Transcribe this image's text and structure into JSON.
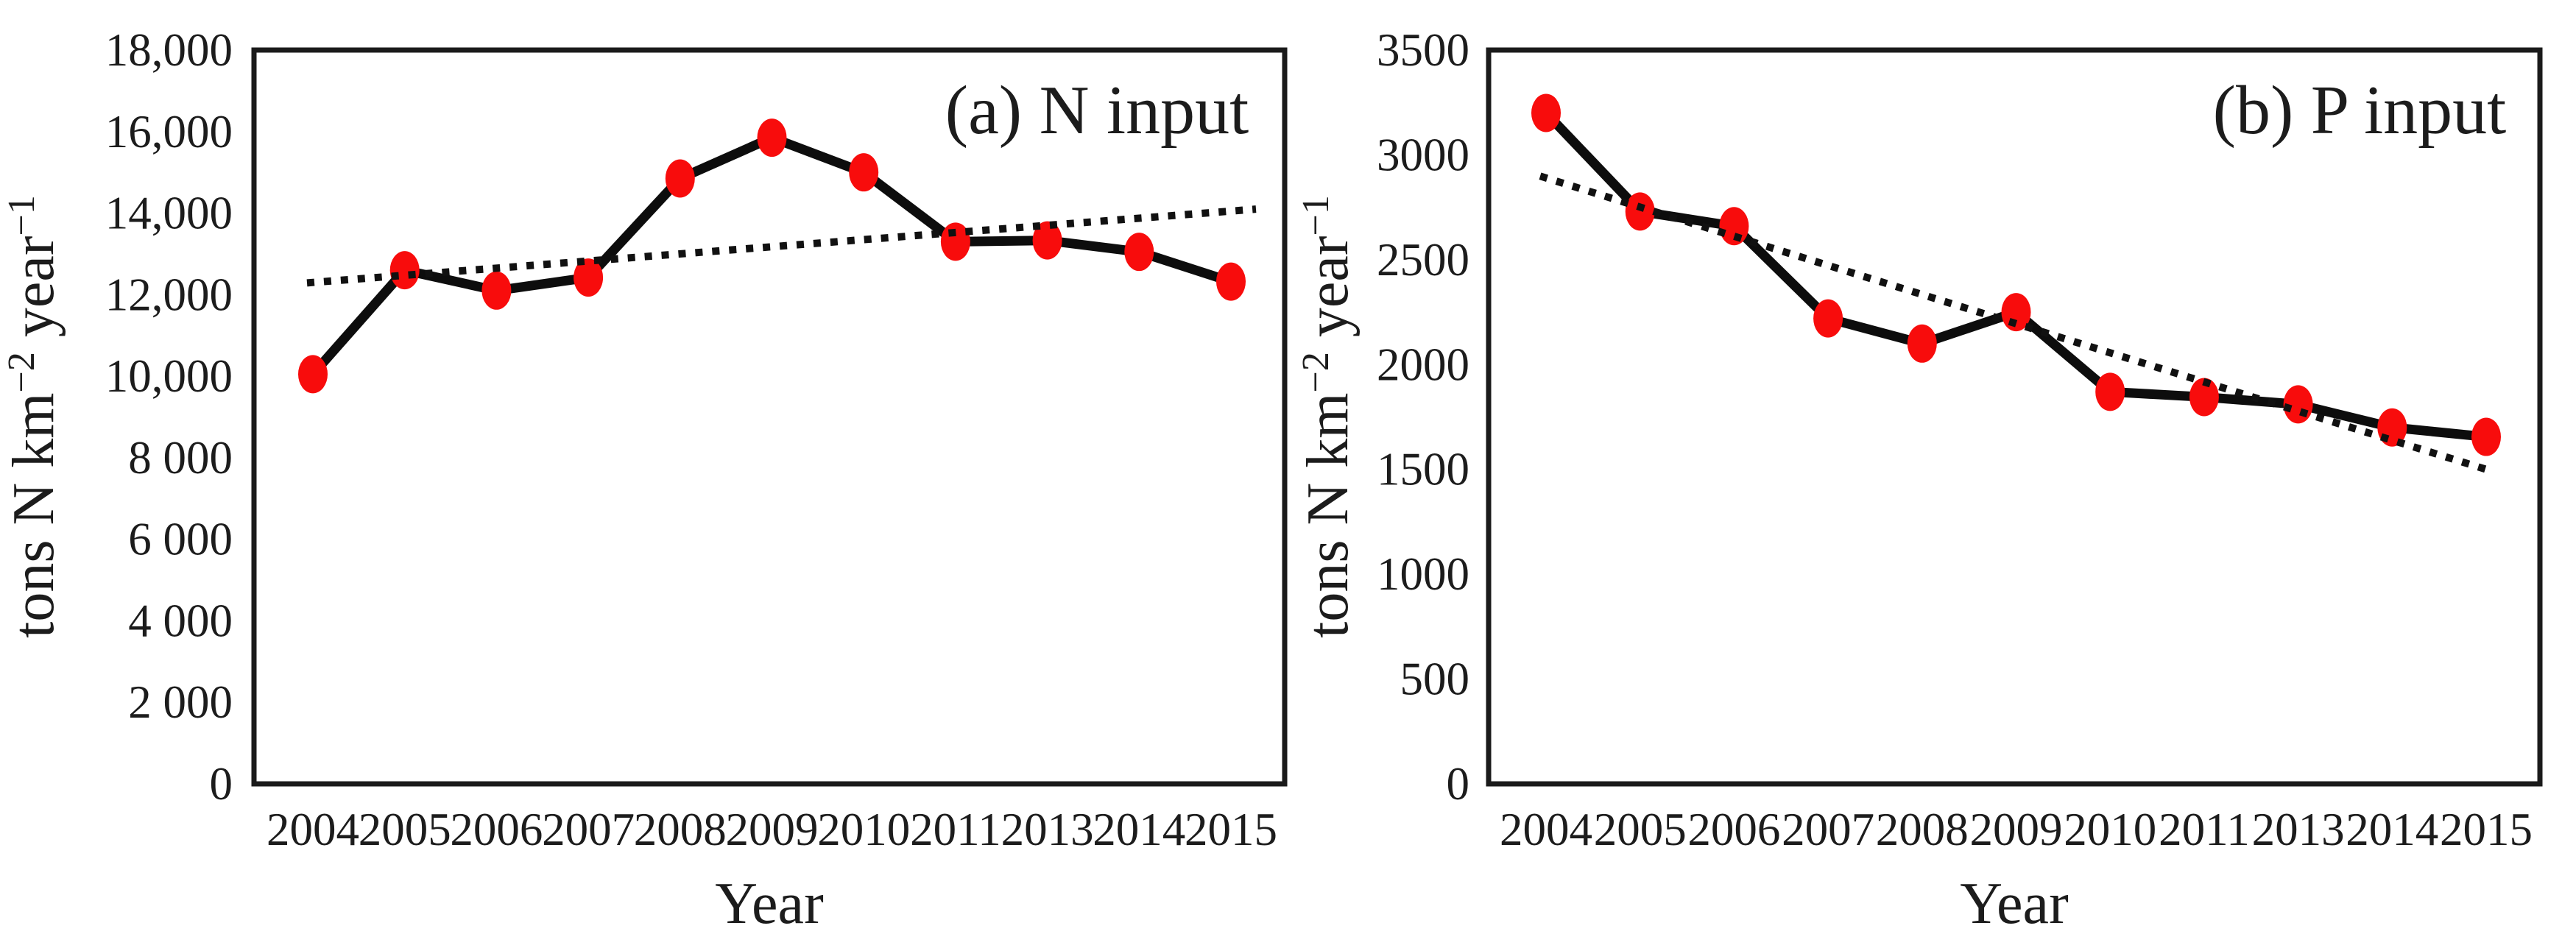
{
  "figure": {
    "background": "#ffffff",
    "text_color": "#1c1c1c",
    "series_line_color": "#0d0d0d",
    "marker_color": "#f80c0c",
    "trendline_color": "#111111"
  },
  "chart_data": [
    {
      "type": "line",
      "title": "(a) N input",
      "xlabel": "Year",
      "ylabel_parts": {
        "pre": "tons N km",
        "sup1": "−2",
        "mid": " year",
        "sup2": "−1"
      },
      "categories": [
        "2004",
        "2005",
        "2006",
        "2007",
        "2008",
        "2009",
        "2010",
        "2011",
        "2013",
        "2014",
        "2015"
      ],
      "series": [
        {
          "name": "N input",
          "values": [
            10050,
            12600,
            12100,
            12420,
            14850,
            15850,
            15000,
            13300,
            13330,
            13050,
            12320
          ]
        }
      ],
      "trendline": {
        "style": "dotted",
        "start_value": 12300,
        "end_value": 14050
      },
      "ylim": [
        0,
        18000
      ],
      "yticks": [
        {
          "value": 0,
          "label": "0"
        },
        {
          "value": 2000,
          "label": "2 000"
        },
        {
          "value": 4000,
          "label": "4 000"
        },
        {
          "value": 6000,
          "label": "6 000"
        },
        {
          "value": 8000,
          "label": "8 000"
        },
        {
          "value": 10000,
          "label": "10,000"
        },
        {
          "value": 12000,
          "label": "12,000"
        },
        {
          "value": 14000,
          "label": "14,000"
        },
        {
          "value": 16000,
          "label": "16,000"
        },
        {
          "value": 18000,
          "label": "18,000"
        }
      ],
      "grid": false,
      "legend": "none"
    },
    {
      "type": "line",
      "title": "(b) P input",
      "xlabel": "Year",
      "ylabel_parts": {
        "pre": "tons N km",
        "sup1": "−2",
        "mid": " year",
        "sup2": "−1"
      },
      "categories": [
        "2004",
        "2005",
        "2006",
        "2007",
        "2008",
        "2009",
        "2010",
        "2011",
        "2013",
        "2014",
        "2015"
      ],
      "series": [
        {
          "name": "P input",
          "values": [
            3200,
            2730,
            2660,
            2220,
            2100,
            2250,
            1870,
            1845,
            1810,
            1700,
            1655
          ]
        }
      ],
      "trendline": {
        "style": "dotted",
        "start_value": 2890,
        "end_value": 1500
      },
      "ylim": [
        0,
        3500
      ],
      "yticks": [
        {
          "value": 0,
          "label": "0"
        },
        {
          "value": 500,
          "label": "500"
        },
        {
          "value": 1000,
          "label": "1000"
        },
        {
          "value": 1500,
          "label": "1500"
        },
        {
          "value": 2000,
          "label": "2000"
        },
        {
          "value": 2500,
          "label": "2500"
        },
        {
          "value": 3000,
          "label": "3000"
        },
        {
          "value": 3500,
          "label": "3500"
        }
      ],
      "grid": false,
      "legend": "none"
    }
  ]
}
